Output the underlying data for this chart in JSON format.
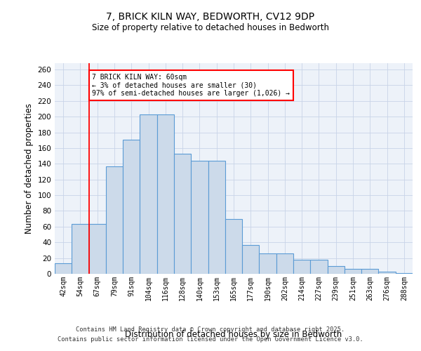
{
  "title_line1": "7, BRICK KILN WAY, BEDWORTH, CV12 9DP",
  "title_line2": "Size of property relative to detached houses in Bedworth",
  "xlabel": "Distribution of detached houses by size in Bedworth",
  "ylabel": "Number of detached properties",
  "categories": [
    "42sqm",
    "54sqm",
    "67sqm",
    "79sqm",
    "91sqm",
    "104sqm",
    "116sqm",
    "128sqm",
    "140sqm",
    "153sqm",
    "165sqm",
    "177sqm",
    "190sqm",
    "202sqm",
    "214sqm",
    "227sqm",
    "239sqm",
    "251sqm",
    "263sqm",
    "276sqm",
    "288sqm"
  ],
  "values": [
    13,
    63,
    63,
    137,
    171,
    203,
    203,
    153,
    144,
    144,
    70,
    37,
    26,
    26,
    18,
    18,
    10,
    6,
    6,
    3,
    1
  ],
  "bar_color": "#ccdaea",
  "bar_edge_color": "#5b9bd5",
  "bar_linewidth": 0.8,
  "red_line_x": 1.5,
  "annotation_text": "7 BRICK KILN WAY: 60sqm\n← 3% of detached houses are smaller (30)\n97% of semi-detached houses are larger (1,026) →",
  "annotation_box_color": "white",
  "annotation_border_color": "red",
  "grid_color": "#c8d4e8",
  "background_color": "#edf2f9",
  "footer_line1": "Contains HM Land Registry data © Crown copyright and database right 2025.",
  "footer_line2": "Contains public sector information licensed under the Open Government Licence v3.0.",
  "ylim": [
    0,
    268
  ],
  "yticks": [
    0,
    20,
    40,
    60,
    80,
    100,
    120,
    140,
    160,
    180,
    200,
    220,
    240,
    260
  ]
}
